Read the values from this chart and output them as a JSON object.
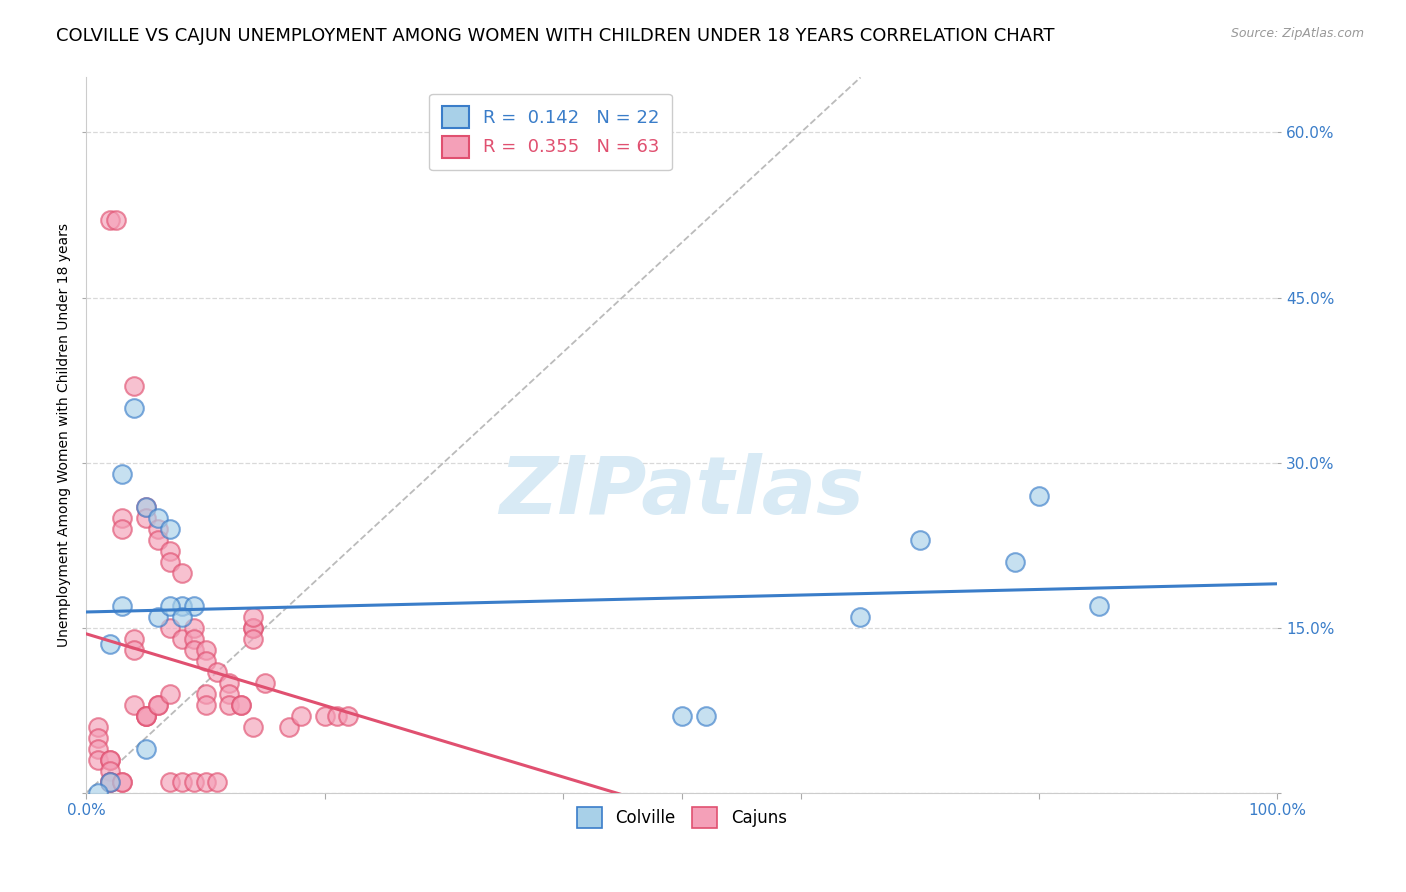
{
  "title": "COLVILLE VS CAJUN UNEMPLOYMENT AMONG WOMEN WITH CHILDREN UNDER 18 YEARS CORRELATION CHART",
  "source": "Source: ZipAtlas.com",
  "ylabel": "Unemployment Among Women with Children Under 18 years",
  "colville_R": 0.142,
  "colville_N": 22,
  "cajun_R": 0.355,
  "cajun_N": 63,
  "colville_color": "#A8D0E8",
  "cajun_color": "#F4A0B8",
  "colville_line_color": "#3A7DC9",
  "cajun_line_color": "#E05070",
  "diagonal_color": "#BBBBBB",
  "watermark": "ZIPatlas",
  "watermark_color": "#D8EAF5",
  "background_color": "#FFFFFF",
  "colville_x": [
    0.02,
    0.03,
    0.03,
    0.04,
    0.05,
    0.06,
    0.07,
    0.08,
    0.09,
    0.05,
    0.06,
    0.07,
    0.08,
    0.5,
    0.52,
    0.65,
    0.7,
    0.8,
    0.78,
    0.85,
    0.02,
    0.01
  ],
  "colville_y": [
    0.135,
    0.29,
    0.17,
    0.35,
    0.26,
    0.25,
    0.24,
    0.17,
    0.17,
    0.04,
    0.16,
    0.17,
    0.16,
    0.07,
    0.07,
    0.16,
    0.23,
    0.27,
    0.21,
    0.17,
    0.01,
    0.0
  ],
  "cajun_x": [
    0.02,
    0.025,
    0.01,
    0.01,
    0.01,
    0.01,
    0.02,
    0.02,
    0.02,
    0.02,
    0.02,
    0.03,
    0.03,
    0.03,
    0.03,
    0.04,
    0.04,
    0.04,
    0.04,
    0.05,
    0.05,
    0.05,
    0.05,
    0.05,
    0.06,
    0.06,
    0.06,
    0.06,
    0.07,
    0.07,
    0.07,
    0.07,
    0.07,
    0.08,
    0.08,
    0.08,
    0.09,
    0.09,
    0.09,
    0.09,
    0.1,
    0.1,
    0.1,
    0.1,
    0.1,
    0.11,
    0.11,
    0.12,
    0.12,
    0.12,
    0.13,
    0.13,
    0.14,
    0.14,
    0.14,
    0.15,
    0.17,
    0.18,
    0.2,
    0.21,
    0.22,
    0.14,
    0.14
  ],
  "cajun_y": [
    0.52,
    0.52,
    0.06,
    0.05,
    0.04,
    0.03,
    0.03,
    0.03,
    0.02,
    0.01,
    0.01,
    0.25,
    0.24,
    0.01,
    0.01,
    0.37,
    0.14,
    0.13,
    0.08,
    0.26,
    0.25,
    0.07,
    0.07,
    0.07,
    0.24,
    0.23,
    0.08,
    0.08,
    0.22,
    0.21,
    0.15,
    0.09,
    0.01,
    0.2,
    0.14,
    0.01,
    0.15,
    0.14,
    0.13,
    0.01,
    0.13,
    0.12,
    0.09,
    0.08,
    0.01,
    0.11,
    0.01,
    0.1,
    0.09,
    0.08,
    0.08,
    0.08,
    0.15,
    0.15,
    0.06,
    0.1,
    0.06,
    0.07,
    0.07,
    0.07,
    0.07,
    0.16,
    0.14
  ],
  "xlim": [
    0.0,
    1.0
  ],
  "ylim": [
    0.0,
    0.65
  ],
  "yticks": [
    0.0,
    0.15,
    0.3,
    0.45,
    0.6
  ],
  "ytick_labels": [
    "",
    "15.0%",
    "30.0%",
    "45.0%",
    "60.0%"
  ],
  "xticks": [
    0.0,
    0.2,
    0.4,
    0.5,
    0.6,
    0.8,
    1.0
  ],
  "xtick_labels_show": [
    "0.0%",
    "",
    "",
    "",
    "",
    "",
    "100.0%"
  ],
  "grid_color": "#D5D5D5",
  "title_fontsize": 13,
  "label_fontsize": 10,
  "tick_fontsize": 11,
  "legend_fontsize": 13,
  "marker_size": 180,
  "marker_alpha": 0.65,
  "marker_linewidth": 1.5
}
